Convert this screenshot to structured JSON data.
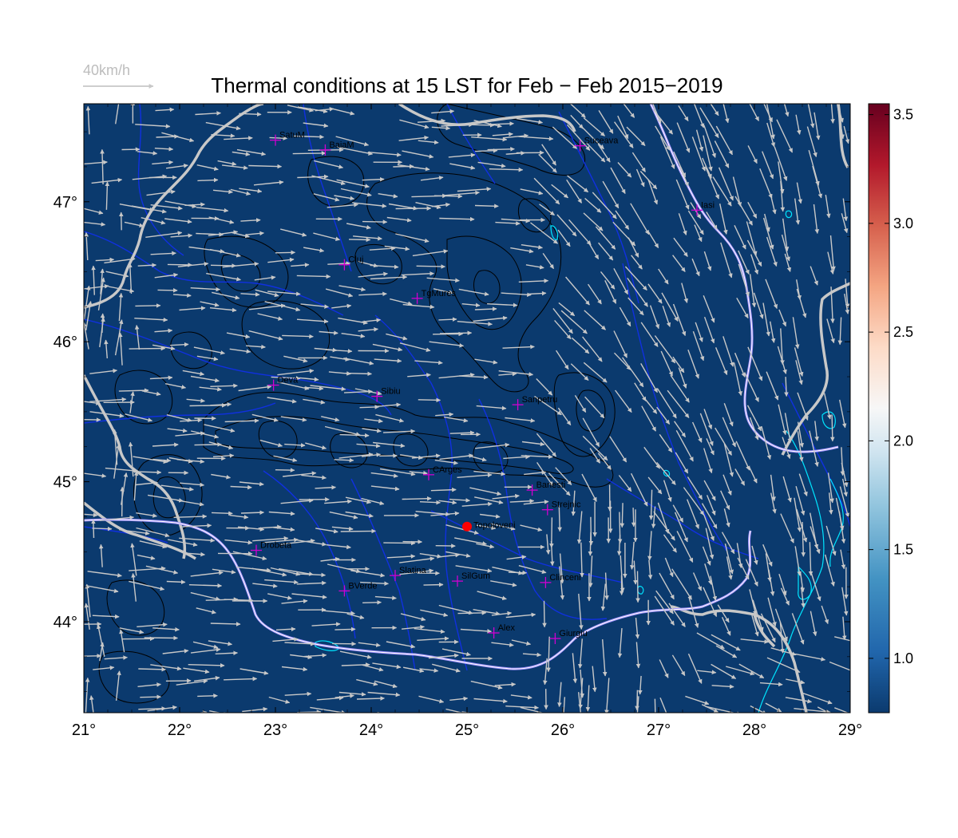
{
  "title": "Thermal conditions at 15 LST for Feb − Feb  2015−2019",
  "wind_scale": {
    "label": "40km/h",
    "color": "#bdbdbd"
  },
  "map": {
    "lon_range": [
      21,
      29
    ],
    "lat_range": [
      43.35,
      47.7
    ],
    "background": "#0b3a6e",
    "x_ticks": [
      {
        "value": 21,
        "label": "21°"
      },
      {
        "value": 22,
        "label": "22°"
      },
      {
        "value": 23,
        "label": "23°"
      },
      {
        "value": 24,
        "label": "24°"
      },
      {
        "value": 25,
        "label": "25°"
      },
      {
        "value": 26,
        "label": "26°"
      },
      {
        "value": 27,
        "label": "27°"
      },
      {
        "value": 28,
        "label": "28°"
      },
      {
        "value": 29,
        "label": "29°"
      }
    ],
    "y_ticks": [
      {
        "value": 44,
        "label": "44°"
      },
      {
        "value": 45,
        "label": "45°"
      },
      {
        "value": 46,
        "label": "46°"
      },
      {
        "value": 47,
        "label": "47°"
      }
    ]
  },
  "colorbar": {
    "range": [
      0.75,
      3.55
    ],
    "ticks": [
      {
        "value": 1.0,
        "label": "1.0"
      },
      {
        "value": 1.5,
        "label": "1.5"
      },
      {
        "value": 2.0,
        "label": "2.0"
      },
      {
        "value": 2.5,
        "label": "2.5"
      },
      {
        "value": 3.0,
        "label": "3.0"
      },
      {
        "value": 3.5,
        "label": "3.5"
      }
    ],
    "colors": [
      "#0b3a6e",
      "#2166ac",
      "#4393c3",
      "#92c5de",
      "#d1e5f0",
      "#f7f7f7",
      "#fddbc7",
      "#f4a582",
      "#d6604d",
      "#b2182b",
      "#67001f"
    ]
  },
  "cities": [
    {
      "name": "SatuM",
      "lon": 23.0,
      "lat": 47.44
    },
    {
      "name": "BaiaM",
      "lon": 23.52,
      "lat": 47.37
    },
    {
      "name": "Suceava",
      "lon": 26.18,
      "lat": 47.4
    },
    {
      "name": "Iasi",
      "lon": 27.4,
      "lat": 46.94
    },
    {
      "name": "Cluj",
      "lon": 23.72,
      "lat": 46.55
    },
    {
      "name": "TgMures",
      "lon": 24.48,
      "lat": 46.31
    },
    {
      "name": "Deva",
      "lon": 22.98,
      "lat": 45.69
    },
    {
      "name": "Sibiu",
      "lon": 24.06,
      "lat": 45.61
    },
    {
      "name": "Sanpetru",
      "lon": 25.53,
      "lat": 45.55
    },
    {
      "name": "CArges",
      "lon": 24.6,
      "lat": 45.05
    },
    {
      "name": "Banesti",
      "lon": 25.68,
      "lat": 44.94
    },
    {
      "name": "Strejnic",
      "lon": 25.84,
      "lat": 44.8
    },
    {
      "name": "Drobeta",
      "lon": 22.8,
      "lat": 44.51
    },
    {
      "name": "Slatina",
      "lon": 24.25,
      "lat": 44.33
    },
    {
      "name": "SilGum",
      "lon": 24.9,
      "lat": 44.29
    },
    {
      "name": "Clinceni",
      "lon": 25.82,
      "lat": 44.28
    },
    {
      "name": "BVerde",
      "lon": 23.72,
      "lat": 44.22
    },
    {
      "name": "Alex",
      "lon": 25.28,
      "lat": 43.92
    },
    {
      "name": "Giurgiu",
      "lon": 25.92,
      "lat": 43.88
    }
  ],
  "highlight_site": {
    "name": "Topoloveni",
    "lon": 25.0,
    "lat": 44.68,
    "color": "#ff0000"
  },
  "colors": {
    "border": "#c8c8c8",
    "rivers": "#1030e0",
    "lakes": "#00e5ff",
    "contours": "#000000",
    "cities": "#d000d0",
    "arrows": "#c8c8c8"
  }
}
